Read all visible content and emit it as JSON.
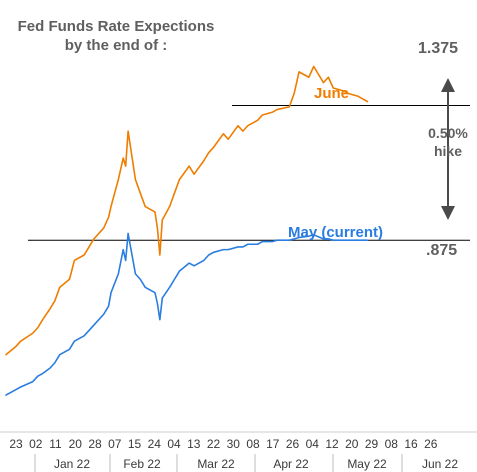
{
  "chart_data": {
    "type": "line",
    "title": "Fed Funds Rate Expections\nby the end of :",
    "ylim": [
      0.2,
      1.7
    ],
    "x_tick_labels": [
      "23",
      "02",
      "11",
      "20",
      "28",
      "07",
      "15",
      "24",
      "04",
      "13",
      "22",
      "30",
      "08",
      "17",
      "26",
      "04",
      "12",
      "20",
      "29",
      "08",
      "16",
      "26"
    ],
    "month_labels": [
      "Jan 22",
      "Feb 22",
      "Mar 22",
      "Apr 22",
      "May 22",
      "Jun 22"
    ],
    "reference_lines": [
      {
        "label": "1.375",
        "value": 1.375
      },
      {
        "label": ".875",
        "value": 0.875
      }
    ],
    "annotation": {
      "text": "0.50%\nhike",
      "from": 1.375,
      "to": 0.875
    },
    "series": [
      {
        "name": "June",
        "color": "#ef7d00",
        "x": [
          "2021-12-23",
          "2021-12-27",
          "2021-12-29",
          "2022-01-03",
          "2022-01-05",
          "2022-01-07",
          "2022-01-10",
          "2022-01-12",
          "2022-01-14",
          "2022-01-18",
          "2022-01-20",
          "2022-01-24",
          "2022-01-26",
          "2022-01-28",
          "2022-02-01",
          "2022-02-03",
          "2022-02-04",
          "2022-02-07",
          "2022-02-09",
          "2022-02-10",
          "2022-02-11",
          "2022-02-14",
          "2022-02-16",
          "2022-02-18",
          "2022-02-22",
          "2022-02-23",
          "2022-02-24",
          "2022-02-25",
          "2022-02-28",
          "2022-03-02",
          "2022-03-04",
          "2022-03-08",
          "2022-03-10",
          "2022-03-14",
          "2022-03-16",
          "2022-03-18",
          "2022-03-22",
          "2022-03-24",
          "2022-03-28",
          "2022-03-30",
          "2022-04-01",
          "2022-04-05",
          "2022-04-07",
          "2022-04-11",
          "2022-04-13",
          "2022-04-18",
          "2022-04-20",
          "2022-04-22",
          "2022-04-26",
          "2022-04-28",
          "2022-05-02",
          "2022-05-04",
          "2022-05-06",
          "2022-05-10",
          "2022-05-12",
          "2022-05-16",
          "2022-05-18",
          "2022-05-20"
        ],
        "y": [
          0.45,
          0.48,
          0.5,
          0.53,
          0.55,
          0.58,
          0.62,
          0.65,
          0.7,
          0.73,
          0.8,
          0.82,
          0.85,
          0.88,
          0.92,
          0.96,
          1.0,
          1.1,
          1.18,
          1.15,
          1.28,
          1.1,
          1.05,
          1.0,
          0.98,
          0.92,
          0.82,
          0.95,
          1.0,
          1.05,
          1.1,
          1.15,
          1.12,
          1.17,
          1.2,
          1.22,
          1.27,
          1.25,
          1.3,
          1.28,
          1.3,
          1.32,
          1.34,
          1.35,
          1.36,
          1.37,
          1.42,
          1.5,
          1.48,
          1.52,
          1.46,
          1.48,
          1.44,
          1.43,
          1.42,
          1.41,
          1.4,
          1.39
        ]
      },
      {
        "name": "May (current)",
        "color": "#2a7de1",
        "x": [
          "2021-12-23",
          "2021-12-27",
          "2021-12-29",
          "2022-01-03",
          "2022-01-05",
          "2022-01-07",
          "2022-01-10",
          "2022-01-12",
          "2022-01-14",
          "2022-01-18",
          "2022-01-20",
          "2022-01-24",
          "2022-01-26",
          "2022-01-28",
          "2022-02-01",
          "2022-02-03",
          "2022-02-04",
          "2022-02-07",
          "2022-02-09",
          "2022-02-10",
          "2022-02-11",
          "2022-02-14",
          "2022-02-16",
          "2022-02-18",
          "2022-02-22",
          "2022-02-23",
          "2022-02-24",
          "2022-02-25",
          "2022-02-28",
          "2022-03-02",
          "2022-03-04",
          "2022-03-08",
          "2022-03-10",
          "2022-03-14",
          "2022-03-16",
          "2022-03-18",
          "2022-03-22",
          "2022-03-24",
          "2022-03-28",
          "2022-03-30",
          "2022-04-01",
          "2022-04-05",
          "2022-04-07",
          "2022-04-11",
          "2022-04-13",
          "2022-04-18",
          "2022-04-20",
          "2022-04-22",
          "2022-04-26",
          "2022-04-28",
          "2022-05-02",
          "2022-05-04",
          "2022-05-06",
          "2022-05-10",
          "2022-05-12",
          "2022-05-16",
          "2022-05-18",
          "2022-05-20"
        ],
        "y": [
          0.3,
          0.32,
          0.33,
          0.35,
          0.37,
          0.38,
          0.4,
          0.42,
          0.45,
          0.47,
          0.5,
          0.52,
          0.54,
          0.56,
          0.6,
          0.63,
          0.68,
          0.75,
          0.84,
          0.8,
          0.9,
          0.75,
          0.73,
          0.7,
          0.68,
          0.64,
          0.58,
          0.66,
          0.7,
          0.73,
          0.76,
          0.79,
          0.78,
          0.8,
          0.82,
          0.83,
          0.84,
          0.84,
          0.85,
          0.85,
          0.86,
          0.86,
          0.87,
          0.87,
          0.875,
          0.875,
          0.88,
          0.885,
          0.89,
          0.895,
          0.88,
          0.88,
          0.875,
          0.875,
          0.875,
          0.875,
          0.875,
          0.875
        ]
      }
    ]
  }
}
